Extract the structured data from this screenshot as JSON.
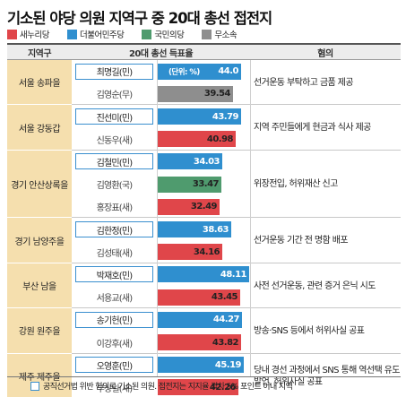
{
  "title": "기소된 야당 의원 지역구 중 20대 총선 접전지",
  "legend": [
    {
      "label": "새누리당",
      "color": "#e0464a"
    },
    {
      "label": "더불어민주당",
      "color": "#2f8fcf"
    },
    {
      "label": "국민의당",
      "color": "#4f9b6e"
    },
    {
      "label": "무소속",
      "color": "#8e8e8e"
    }
  ],
  "headers": {
    "region": "지역구",
    "votes": "20대 총선 득표율",
    "charge": "혐의"
  },
  "unit_note": "(단위: %)",
  "footnote": "공직선거법 위반 혐의로 기소된 의원. 접전지는 지지율 격차 5% 포인트 이내 지역",
  "chart_data": {
    "type": "bar",
    "unit": "%",
    "districts": [
      {
        "region": "서울 송파을",
        "charge": "선거운동 부탁하고 금품 제공",
        "candidates": [
          {
            "name": "최명길(민)",
            "value": 44.0,
            "display": "44.0",
            "party_color": "#2f8fcf",
            "indicted": true
          },
          {
            "name": "김영순(무)",
            "value": 39.54,
            "display": "39.54",
            "party_color": "#8e8e8e",
            "indicted": false
          }
        ]
      },
      {
        "region": "서울 강동갑",
        "charge": "지역 주민들에게 현금과 식사 제공",
        "candidates": [
          {
            "name": "진선미(민)",
            "value": 43.79,
            "display": "43.79",
            "party_color": "#2f8fcf",
            "indicted": true
          },
          {
            "name": "신동우(새)",
            "value": 40.98,
            "display": "40.98",
            "party_color": "#e0464a",
            "indicted": false
          }
        ]
      },
      {
        "region": "경기 안산상록을",
        "charge": "위장전입, 허위재산 신고",
        "candidates": [
          {
            "name": "김철민(민)",
            "value": 34.03,
            "display": "34.03",
            "party_color": "#2f8fcf",
            "indicted": true
          },
          {
            "name": "김영환(국)",
            "value": 33.47,
            "display": "33.47",
            "party_color": "#4f9b6e",
            "indicted": false
          },
          {
            "name": "홍장표(새)",
            "value": 32.49,
            "display": "32.49",
            "party_color": "#e0464a",
            "indicted": false
          }
        ]
      },
      {
        "region": "경기 남양주을",
        "charge": "선거운동 기간 전 명함 배포",
        "candidates": [
          {
            "name": "김한정(민)",
            "value": 38.63,
            "display": "38.63",
            "party_color": "#2f8fcf",
            "indicted": true
          },
          {
            "name": "김성태(새)",
            "value": 34.16,
            "display": "34.16",
            "party_color": "#e0464a",
            "indicted": false
          }
        ]
      },
      {
        "region": "부산 남을",
        "charge": "사전 선거운동, 관련 증거 은닉 시도",
        "candidates": [
          {
            "name": "박재호(민)",
            "value": 48.11,
            "display": "48.11",
            "party_color": "#2f8fcf",
            "indicted": true
          },
          {
            "name": "서용교(새)",
            "value": 43.45,
            "display": "43.45",
            "party_color": "#e0464a",
            "indicted": false
          }
        ]
      },
      {
        "region": "강원 원주을",
        "charge": "방송·SNS 등에서 허위사실 공표",
        "candidates": [
          {
            "name": "송기헌(민)",
            "value": 44.27,
            "display": "44.27",
            "party_color": "#2f8fcf",
            "indicted": true
          },
          {
            "name": "이강후(새)",
            "value": 43.82,
            "display": "43.82",
            "party_color": "#e0464a",
            "indicted": false
          }
        ]
      },
      {
        "region": "제주 제주을",
        "charge": "당내 경선 과정에서 SNS 통해 역선택 유도 발언, 허위사실 공표",
        "candidates": [
          {
            "name": "오영훈(민)",
            "value": 45.19,
            "display": "45.19",
            "party_color": "#2f8fcf",
            "indicted": true
          },
          {
            "name": "부상일(새)",
            "value": 42.26,
            "display": "42.26",
            "party_color": "#e0464a",
            "indicted": false
          }
        ]
      }
    ]
  }
}
